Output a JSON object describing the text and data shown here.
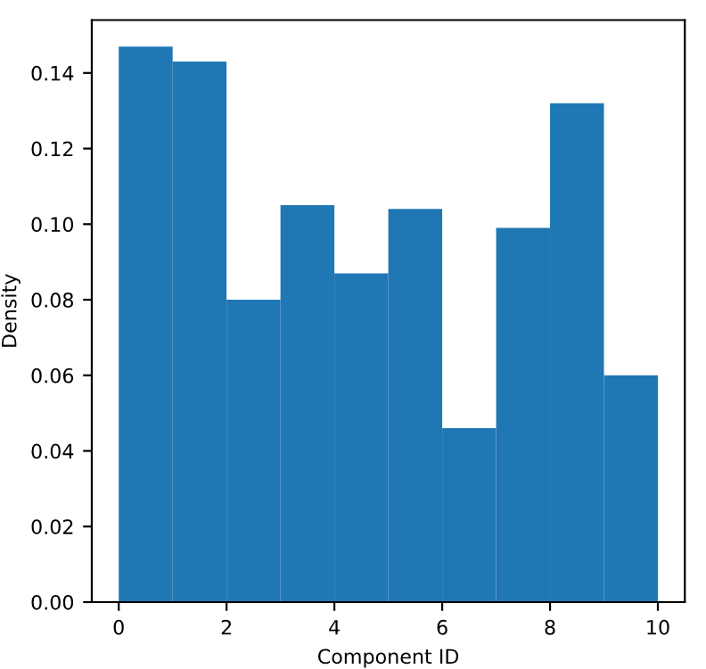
{
  "chart_data": {
    "type": "histogram",
    "xlabel": "Component ID",
    "ylabel": "Density",
    "bins": [
      0,
      1,
      2,
      3,
      4,
      5,
      6,
      7,
      8,
      9,
      10
    ],
    "values": [
      0.147,
      0.143,
      0.08,
      0.105,
      0.087,
      0.104,
      0.046,
      0.099,
      0.132,
      0.06
    ],
    "color": "#1f77b4",
    "xlim": [
      -0.5,
      10.5
    ],
    "xticks": [
      0,
      2,
      4,
      6,
      8,
      10
    ],
    "ylim": [
      0,
      0.154
    ],
    "yticks": [
      {
        "value": 0,
        "label": "0.00"
      },
      {
        "value": 0.02,
        "label": "0.02"
      },
      {
        "value": 0.04,
        "label": "0.04"
      },
      {
        "value": 0.06,
        "label": "0.06"
      },
      {
        "value": 0.08,
        "label": "0.08"
      },
      {
        "value": 0.1,
        "label": "0.10"
      },
      {
        "value": 0.12,
        "label": "0.12"
      },
      {
        "value": 0.14,
        "label": "0.14"
      }
    ]
  }
}
